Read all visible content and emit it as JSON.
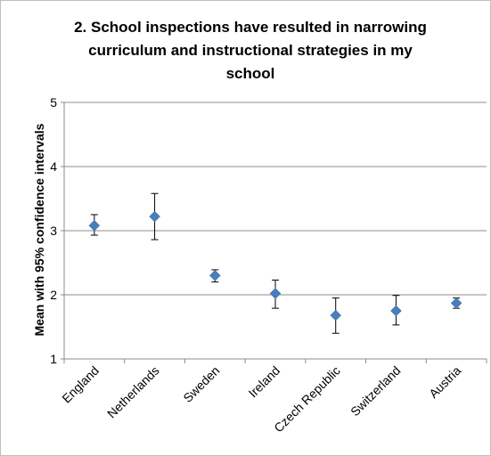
{
  "chart_data": {
    "type": "scatter",
    "title": "2. School inspections have resulted in narrowing curriculum and instructional strategies in my school",
    "title_lines": [
      "2. School inspections have resulted in narrowing",
      "curriculum and instructional strategies in my",
      "school"
    ],
    "ylabel": "Mean with 95% confidence intervals",
    "xlabel": "",
    "ylim": [
      1,
      5
    ],
    "yticks": [
      "1",
      "2",
      "3",
      "4",
      "5"
    ],
    "grid": true,
    "legend": "none",
    "marker": "diamond",
    "color": "#4a7ebb",
    "categories": [
      "England",
      "Netherlands",
      "Sweden",
      "Ireland",
      "Czech Republic",
      "Switzerland",
      "Austria"
    ],
    "series": [
      {
        "values": [
          3.08,
          3.22,
          2.3,
          2.02,
          1.68,
          1.75,
          1.87
        ],
        "lower": [
          2.93,
          2.86,
          2.2,
          1.79,
          1.4,
          1.53,
          1.79
        ],
        "upper": [
          3.25,
          3.58,
          2.39,
          2.23,
          1.95,
          1.99,
          1.95
        ]
      }
    ]
  }
}
